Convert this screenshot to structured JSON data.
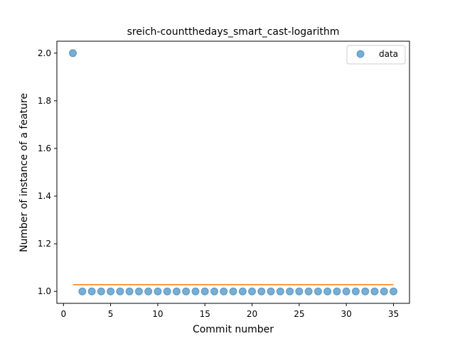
{
  "chart_data": {
    "type": "scatter",
    "title": "sreich-countthedays_smart_cast-logarithm",
    "xlabel": "Commit number",
    "ylabel": "Number of instance of a feature",
    "xlim": [
      -0.7,
      36.7
    ],
    "ylim": [
      0.95,
      2.05
    ],
    "x_ticks": [
      0,
      5,
      10,
      15,
      20,
      25,
      30,
      35
    ],
    "x_tick_labels": [
      "0",
      "5",
      "10",
      "15",
      "20",
      "25",
      "30",
      "35"
    ],
    "y_ticks": [
      1.0,
      1.2,
      1.4,
      1.6,
      1.8,
      2.0
    ],
    "y_tick_labels": [
      "1.0",
      "1.2",
      "1.4",
      "1.6",
      "1.8",
      "2.0"
    ],
    "grid": false,
    "legend_position": "top-right",
    "series": [
      {
        "name": "data",
        "kind": "scatter",
        "color": "#1f77b4",
        "x": [
          1,
          2,
          3,
          4,
          5,
          6,
          7,
          8,
          9,
          10,
          11,
          12,
          13,
          14,
          15,
          16,
          17,
          18,
          19,
          20,
          21,
          22,
          23,
          24,
          25,
          26,
          27,
          28,
          29,
          30,
          31,
          32,
          33,
          34,
          35
        ],
        "y": [
          2,
          1,
          1,
          1,
          1,
          1,
          1,
          1,
          1,
          1,
          1,
          1,
          1,
          1,
          1,
          1,
          1,
          1,
          1,
          1,
          1,
          1,
          1,
          1,
          1,
          1,
          1,
          1,
          1,
          1,
          1,
          1,
          1,
          1,
          1
        ]
      },
      {
        "kind": "line",
        "color": "#ff7f0e",
        "x": [
          1,
          35
        ],
        "y": [
          1.028,
          1.028
        ]
      }
    ]
  }
}
